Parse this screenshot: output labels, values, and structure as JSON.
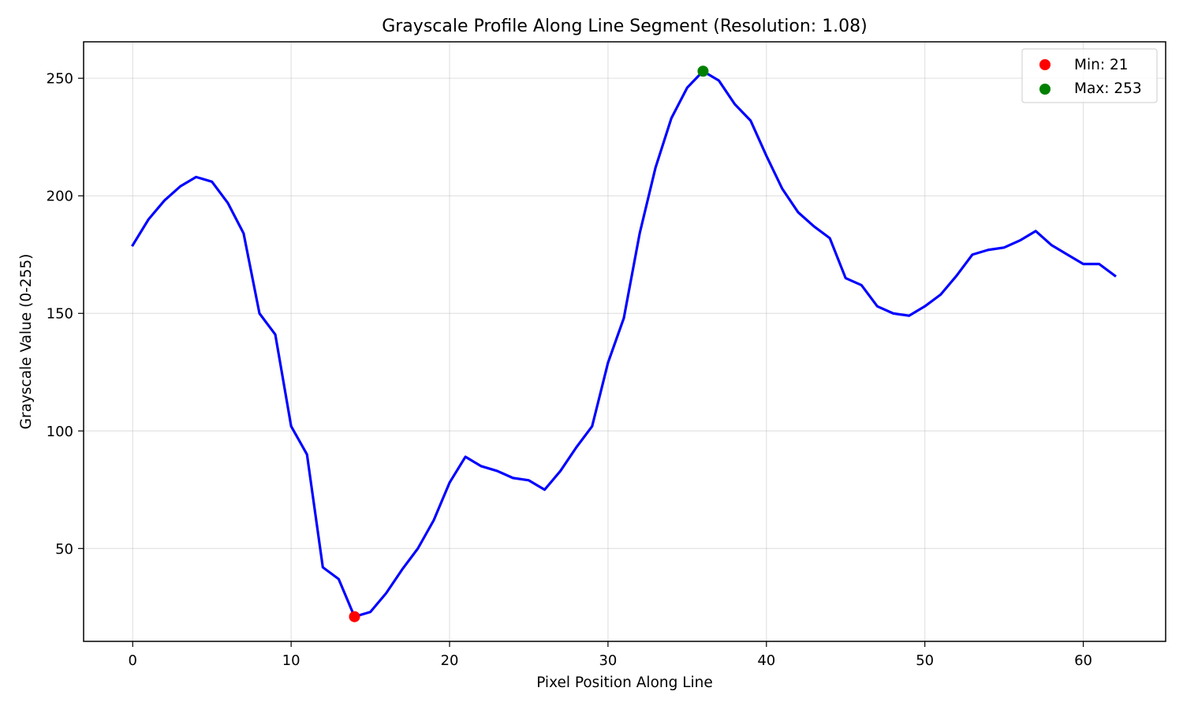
{
  "chart_data": {
    "type": "line",
    "title": "Grayscale Profile Along Line Segment (Resolution: 1.08)",
    "xlabel": "Pixel Position Along Line",
    "ylabel": "Grayscale Value (0-255)",
    "xlim": [
      -3.1,
      65.2
    ],
    "ylim": [
      10.5,
      265.5
    ],
    "xticks": [
      0,
      10,
      20,
      30,
      40,
      50,
      60
    ],
    "yticks": [
      50,
      100,
      150,
      200,
      250
    ],
    "grid": true,
    "legend_position": "top-right",
    "series": [
      {
        "color": "#0000ff",
        "x": [
          0,
          1,
          2,
          3,
          4,
          5,
          6,
          7,
          8,
          9,
          10,
          11,
          12,
          13,
          14,
          15,
          16,
          17,
          18,
          19,
          20,
          21,
          22,
          23,
          24,
          25,
          26,
          27,
          28,
          29,
          30,
          31,
          32,
          33,
          34,
          35,
          36,
          37,
          38,
          39,
          40,
          41,
          42,
          43,
          44,
          45,
          46,
          47,
          48,
          49,
          50,
          51,
          52,
          53,
          54,
          55,
          56,
          57,
          58,
          59,
          60,
          61,
          62
        ],
        "y": [
          179,
          190,
          198,
          204,
          208,
          206,
          197,
          184,
          150,
          141,
          102,
          90,
          42,
          37,
          21,
          23,
          31,
          41,
          50,
          62,
          78,
          89,
          85,
          83,
          80,
          79,
          75,
          83,
          93,
          102,
          129,
          148,
          184,
          212,
          233,
          246,
          253,
          249,
          239,
          232,
          217,
          203,
          193,
          187,
          182,
          165,
          162,
          153,
          150,
          149,
          153,
          158,
          166,
          175,
          177,
          178,
          181,
          185,
          179,
          175,
          171,
          171,
          166
        ]
      }
    ],
    "markers": [
      {
        "label": "Min: 21",
        "x": 14,
        "y": 21,
        "color": "#ff0000"
      },
      {
        "label": "Max: 253",
        "x": 36,
        "y": 253,
        "color": "#008000"
      }
    ]
  }
}
